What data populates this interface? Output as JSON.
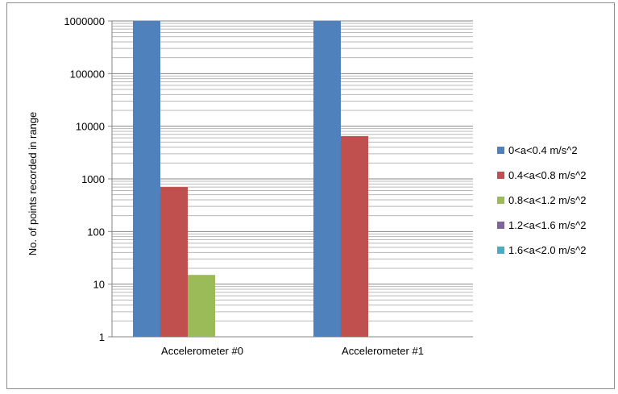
{
  "chart_data": {
    "type": "bar",
    "title": "",
    "xlabel": "",
    "ylabel": "No. of points recorded in range",
    "y_scale": "log",
    "ylim": [
      1,
      1000000
    ],
    "y_ticks": [
      "1",
      "10",
      "100",
      "1000",
      "10000",
      "100000",
      "1000000"
    ],
    "grid": true,
    "legend_position": "right",
    "categories": [
      "Accelerometer #0",
      "Accelerometer #1"
    ],
    "series": [
      {
        "name": "0<a<0.4 m/s^2",
        "color": "#4f81bd",
        "values": [
          1000000,
          1000000
        ]
      },
      {
        "name": "0.4<a<0.8 m/s^2",
        "color": "#c0504d",
        "values": [
          700,
          6500
        ]
      },
      {
        "name": "0.8<a<1.2 m/s^2",
        "color": "#9bbb59",
        "values": [
          15,
          0
        ]
      },
      {
        "name": "1.2<a<1.6 m/s^2",
        "color": "#8064a2",
        "values": [
          0,
          0
        ]
      },
      {
        "name": "1.6<a<2.0 m/s^2",
        "color": "#4bacc6",
        "values": [
          0,
          0
        ]
      }
    ]
  }
}
